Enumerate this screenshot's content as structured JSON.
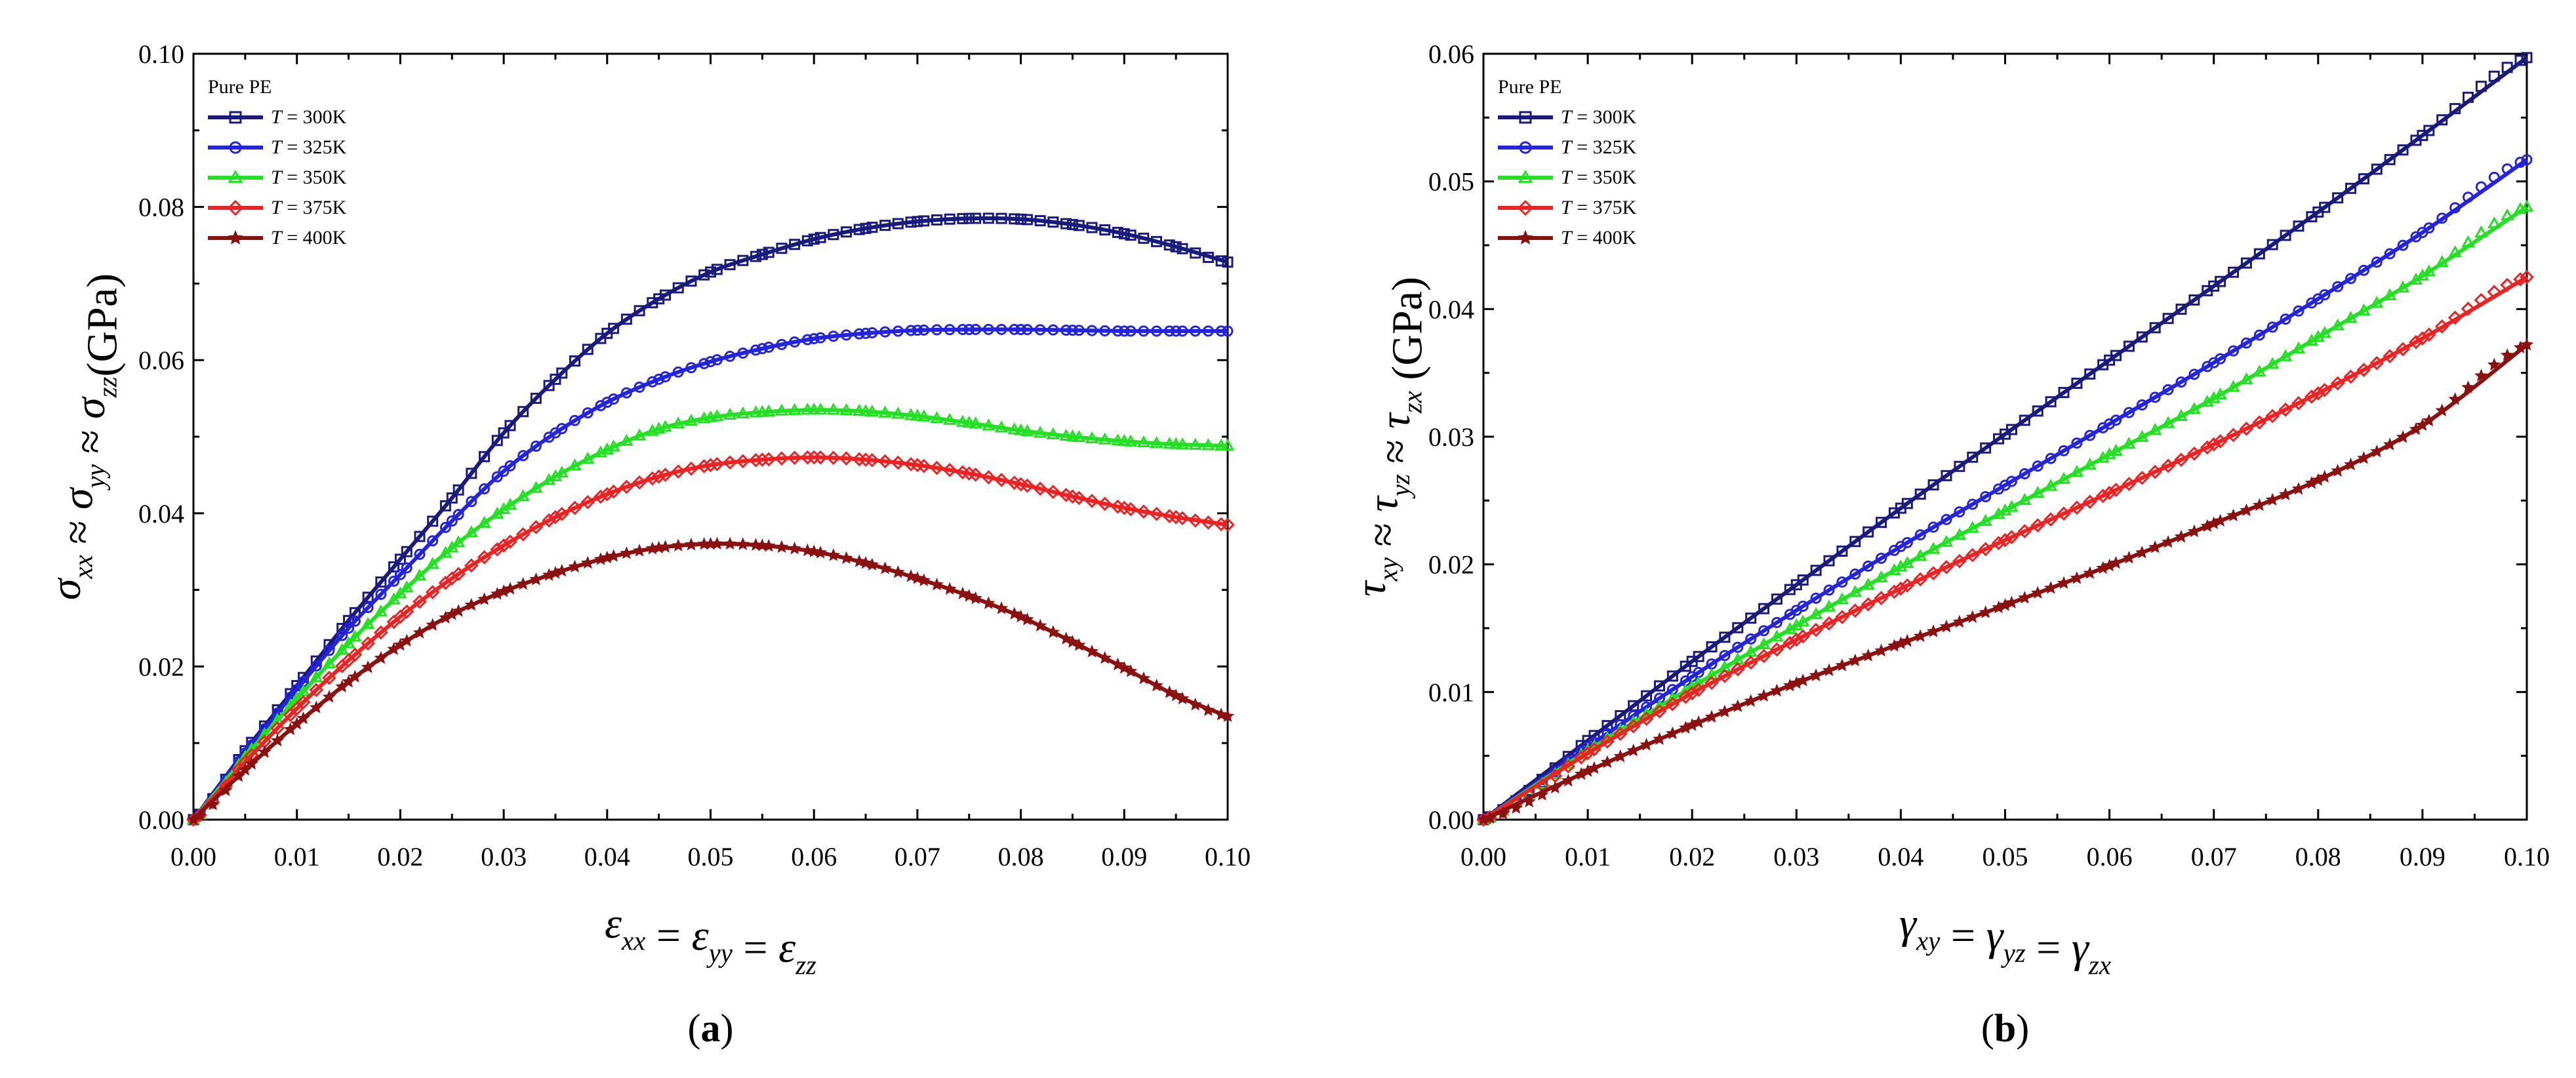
{
  "chart_data": [
    {
      "type": "line",
      "panel_label": "a",
      "legend_title": "Pure PE",
      "legend_position": "top-left",
      "xlim": [
        0,
        0.1
      ],
      "ylim": [
        0,
        0.1
      ],
      "xticks": [
        "0.00",
        "0.01",
        "0.02",
        "0.03",
        "0.04",
        "0.05",
        "0.06",
        "0.07",
        "0.08",
        "0.09",
        "0.10"
      ],
      "yticks": [
        "0.00",
        "0.02",
        "0.04",
        "0.06",
        "0.08",
        "0.10"
      ],
      "xlabel": {
        "parts": [
          {
            "t": "ε",
            "sub": "xx"
          },
          {
            "t": " = "
          },
          {
            "t": "ε",
            "sub": "yy"
          },
          {
            "t": " = "
          },
          {
            "t": "ε",
            "sub": "zz"
          }
        ]
      },
      "ylabel": {
        "parts": [
          {
            "t": "σ",
            "sub": "xx"
          },
          {
            "t": " ≈ "
          },
          {
            "t": "σ",
            "sub": "yy"
          },
          {
            "t": " ≈ "
          },
          {
            "t": "σ",
            "sub": "zz"
          },
          {
            "t": "(GPa)",
            "upright": true
          }
        ]
      },
      "series": [
        {
          "name": "T = 300K",
          "var": "T",
          "val": " = 300K",
          "color": "#1a1a7e",
          "marker": "square",
          "x": [
            0,
            0.005,
            0.01,
            0.015,
            0.02,
            0.025,
            0.03,
            0.035,
            0.04,
            0.045,
            0.05,
            0.055,
            0.06,
            0.065,
            0.07,
            0.075,
            0.08,
            0.085,
            0.09,
            0.095,
            0.1
          ],
          "y": [
            0,
            0.009,
            0.0175,
            0.026,
            0.034,
            0.042,
            0.0505,
            0.0575,
            0.0635,
            0.068,
            0.0715,
            0.0738,
            0.0758,
            0.0772,
            0.0781,
            0.0785,
            0.0784,
            0.0777,
            0.0765,
            0.0748,
            0.0728
          ]
        },
        {
          "name": "T = 325K",
          "var": "T",
          "val": " = 325K",
          "color": "#2424e0",
          "marker": "circle",
          "x": [
            0,
            0.005,
            0.01,
            0.015,
            0.02,
            0.025,
            0.03,
            0.035,
            0.04,
            0.045,
            0.05,
            0.055,
            0.06,
            0.065,
            0.07,
            0.075,
            0.08,
            0.085,
            0.09,
            0.095,
            0.1
          ],
          "y": [
            0,
            0.0087,
            0.017,
            0.025,
            0.032,
            0.039,
            0.0455,
            0.0505,
            0.0545,
            0.0575,
            0.0598,
            0.0615,
            0.0628,
            0.0635,
            0.0639,
            0.064,
            0.064,
            0.0639,
            0.0638,
            0.0638,
            0.0638
          ]
        },
        {
          "name": "T = 350K",
          "var": "T",
          "val": " = 350K",
          "color": "#22e022",
          "marker": "triangle",
          "x": [
            0,
            0.005,
            0.01,
            0.015,
            0.02,
            0.025,
            0.03,
            0.035,
            0.04,
            0.045,
            0.05,
            0.055,
            0.06,
            0.065,
            0.07,
            0.075,
            0.08,
            0.085,
            0.09,
            0.095,
            0.1
          ],
          "y": [
            0,
            0.0082,
            0.0158,
            0.023,
            0.0295,
            0.0355,
            0.0405,
            0.0448,
            0.0483,
            0.051,
            0.0525,
            0.0532,
            0.0535,
            0.0533,
            0.0527,
            0.0518,
            0.0508,
            0.05,
            0.0494,
            0.049,
            0.0488
          ]
        },
        {
          "name": "T = 375K",
          "var": "T",
          "val": " = 375K",
          "color": "#ee2222",
          "marker": "diamond",
          "x": [
            0,
            0.005,
            0.01,
            0.015,
            0.02,
            0.025,
            0.03,
            0.035,
            0.04,
            0.045,
            0.05,
            0.055,
            0.06,
            0.065,
            0.07,
            0.075,
            0.08,
            0.085,
            0.09,
            0.095,
            0.1
          ],
          "y": [
            0,
            0.0075,
            0.0145,
            0.0208,
            0.0265,
            0.0315,
            0.0358,
            0.0395,
            0.0425,
            0.0448,
            0.0463,
            0.047,
            0.0473,
            0.047,
            0.0463,
            0.0452,
            0.0438,
            0.0422,
            0.0407,
            0.0395,
            0.0385
          ]
        },
        {
          "name": "T = 400K",
          "var": "T",
          "val": " = 400K",
          "color": "#8b1010",
          "marker": "star",
          "x": [
            0,
            0.005,
            0.01,
            0.015,
            0.02,
            0.025,
            0.03,
            0.035,
            0.04,
            0.045,
            0.05,
            0.055,
            0.06,
            0.065,
            0.07,
            0.075,
            0.08,
            0.085,
            0.09,
            0.095,
            0.1
          ],
          "y": [
            0,
            0.0065,
            0.0125,
            0.018,
            0.0228,
            0.0268,
            0.0298,
            0.0322,
            0.0342,
            0.0355,
            0.036,
            0.0358,
            0.035,
            0.0335,
            0.0315,
            0.0292,
            0.0265,
            0.0232,
            0.0198,
            0.0162,
            0.0135
          ]
        }
      ]
    },
    {
      "type": "line",
      "panel_label": "b",
      "legend_title": "Pure PE",
      "legend_position": "top-left",
      "xlim": [
        0,
        0.1
      ],
      "ylim": [
        0,
        0.06
      ],
      "xticks": [
        "0.00",
        "0.01",
        "0.02",
        "0.03",
        "0.04",
        "0.05",
        "0.06",
        "0.07",
        "0.08",
        "0.09",
        "0.10"
      ],
      "yticks": [
        "0.00",
        "0.01",
        "0.02",
        "0.03",
        "0.04",
        "0.05",
        "0.06"
      ],
      "xlabel": {
        "parts": [
          {
            "t": "γ",
            "sub": "xy"
          },
          {
            "t": " = "
          },
          {
            "t": "γ",
            "sub": "yz"
          },
          {
            "t": " = "
          },
          {
            "t": "γ",
            "sub": "zx"
          }
        ]
      },
      "ylabel": {
        "parts": [
          {
            "t": "τ",
            "sub": "xy"
          },
          {
            "t": " ≈ "
          },
          {
            "t": "τ",
            "sub": "yz"
          },
          {
            "t": " ≈ "
          },
          {
            "t": "τ",
            "sub": "zx"
          },
          {
            "t": " (GPa)",
            "upright": true
          }
        ]
      },
      "series": [
        {
          "name": "T = 300K",
          "var": "T",
          "val": " = 300K",
          "color": "#1a1a7e",
          "marker": "square",
          "x": [
            0,
            0.01,
            0.02,
            0.03,
            0.04,
            0.05,
            0.06,
            0.07,
            0.08,
            0.09,
            0.1
          ],
          "y": [
            0,
            0.0062,
            0.0124,
            0.0184,
            0.0244,
            0.0302,
            0.036,
            0.0418,
            0.0476,
            0.0536,
            0.0597
          ]
        },
        {
          "name": "T = 325K",
          "var": "T",
          "val": " = 325K",
          "color": "#2424e0",
          "marker": "circle",
          "x": [
            0,
            0.01,
            0.02,
            0.03,
            0.04,
            0.05,
            0.06,
            0.07,
            0.08,
            0.09,
            0.1
          ],
          "y": [
            0,
            0.0057,
            0.0112,
            0.0164,
            0.0214,
            0.0262,
            0.031,
            0.0358,
            0.0408,
            0.046,
            0.0517
          ]
        },
        {
          "name": "T = 350K",
          "var": "T",
          "val": " = 350K",
          "color": "#22e022",
          "marker": "triangle",
          "x": [
            0,
            0.01,
            0.02,
            0.03,
            0.04,
            0.05,
            0.06,
            0.07,
            0.08,
            0.09,
            0.1
          ],
          "y": [
            0,
            0.0054,
            0.0104,
            0.0152,
            0.0198,
            0.0242,
            0.0286,
            0.033,
            0.0378,
            0.0426,
            0.048
          ]
        },
        {
          "name": "T = 375K",
          "var": "T",
          "val": " = 375K",
          "color": "#ee2222",
          "marker": "diamond",
          "x": [
            0,
            0.01,
            0.02,
            0.03,
            0.04,
            0.05,
            0.06,
            0.07,
            0.08,
            0.09,
            0.1
          ],
          "y": [
            0,
            0.0052,
            0.0099,
            0.0141,
            0.0181,
            0.0219,
            0.0256,
            0.0294,
            0.0334,
            0.0377,
            0.0425
          ]
        },
        {
          "name": "T = 400K",
          "var": "T",
          "val": " = 400K",
          "color": "#8b1010",
          "marker": "star",
          "x": [
            0,
            0.01,
            0.02,
            0.03,
            0.04,
            0.05,
            0.06,
            0.07,
            0.08,
            0.09,
            0.1
          ],
          "y": [
            0,
            0.0038,
            0.0074,
            0.0107,
            0.0138,
            0.0168,
            0.0199,
            0.0232,
            0.0266,
            0.0309,
            0.0372
          ]
        }
      ]
    }
  ]
}
